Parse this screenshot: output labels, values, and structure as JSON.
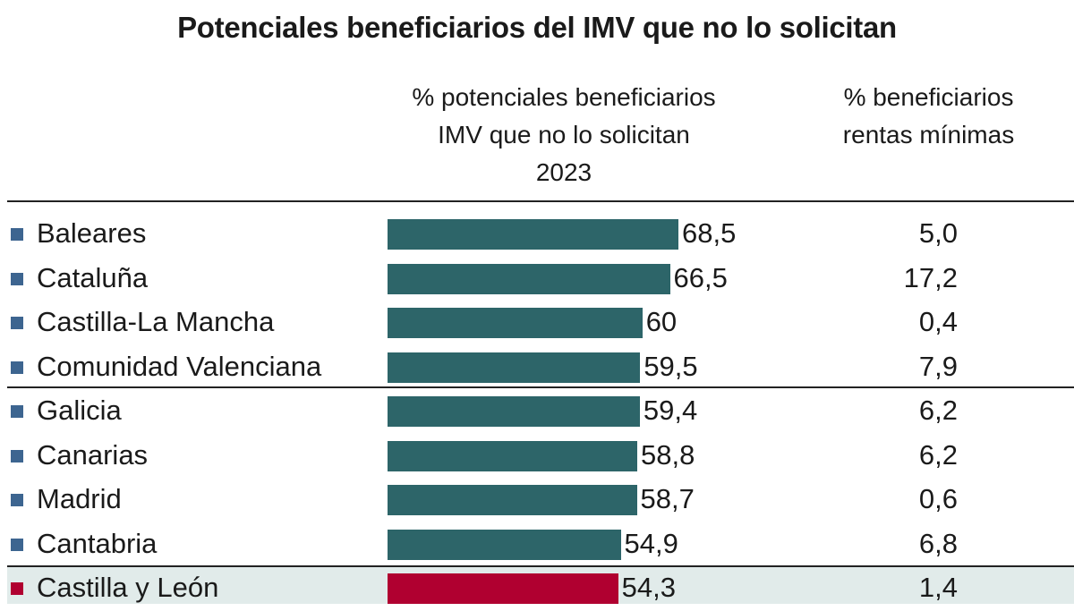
{
  "chart_data": {
    "type": "table",
    "title": "Potenciales beneficiarios del IMV que no lo solicitan",
    "columns": [
      "% potenciales beneficiarios IMV que no lo solicitan 2023",
      "% beneficiarios rentas mínimas"
    ],
    "categories": [
      "Baleares",
      "Cataluña",
      "Castilla-La Mancha",
      "Comunidad Valenciana",
      "Galicia",
      "Canarias",
      "Madrid",
      "Cantabria",
      "Castilla y León"
    ],
    "values": [
      68.5,
      66.5,
      60,
      59.5,
      59.4,
      58.8,
      58.7,
      54.9,
      54.3
    ],
    "value_labels": [
      "68,5",
      "66,5",
      "60",
      "59,5",
      "59,4",
      "58,8",
      "58,7",
      "54,9",
      "54,3"
    ],
    "rentas_minimas": [
      "5,0",
      "17,2",
      "0,4",
      "7,9",
      "6,2",
      "6,2",
      "0,6",
      "6,8",
      "1,4"
    ],
    "highlight": "Castilla y León",
    "colors": {
      "bar": "#2d6569",
      "highlight_bar": "#b00030",
      "bullet": "#3d6590",
      "highlight_bullet": "#b00030",
      "highlight_bg": "#e1ebea"
    }
  }
}
